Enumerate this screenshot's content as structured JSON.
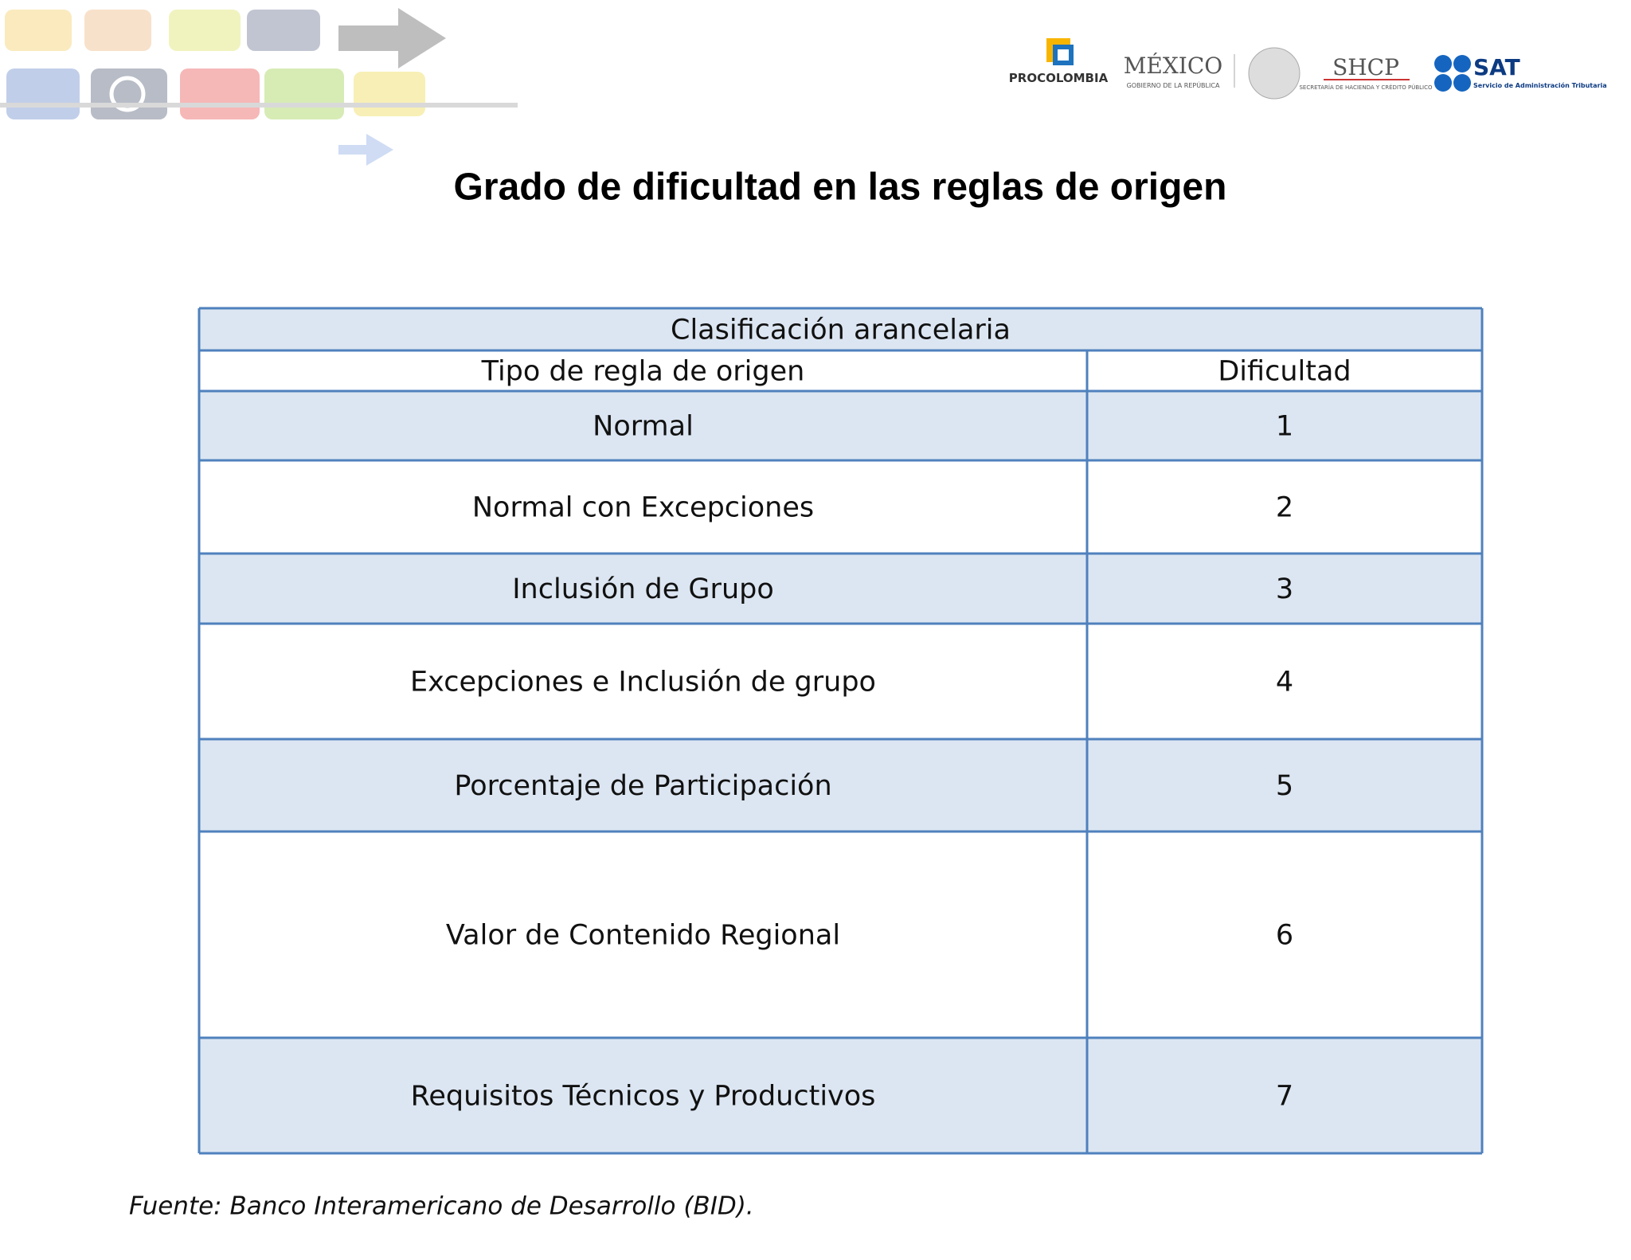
{
  "header": {
    "title": "Grado de dificultad en las reglas de origen",
    "logos": {
      "procolombia": "PROCOLOMBIA",
      "mexico": "MÉXICO",
      "mexico_sub": "GOBIERNO DE LA REPÚBLICA",
      "shcp": "SHCP",
      "shcp_sub": "SECRETARÍA DE HACIENDA Y CRÉDITO PÚBLICO",
      "sat": "SAT",
      "sat_sub": "Servicio de Administración Tributaria"
    }
  },
  "table": {
    "caption": "Clasificación arancelaria",
    "columns": [
      "Tipo de regla de origen",
      "Dificultad"
    ],
    "rows": [
      [
        "Normal",
        1
      ],
      [
        "Normal con Excepciones",
        2
      ],
      [
        "Inclusión de Grupo",
        3
      ],
      [
        "Excepciones e Inclusión  de grupo",
        4
      ],
      [
        "Porcentaje de Participación",
        5
      ],
      [
        "Valor de Contenido Regional",
        6
      ],
      [
        "Requisitos Técnicos y Productivos",
        7
      ]
    ]
  },
  "source": "Fuente: Banco Interamericano de Desarrollo (BID)."
}
